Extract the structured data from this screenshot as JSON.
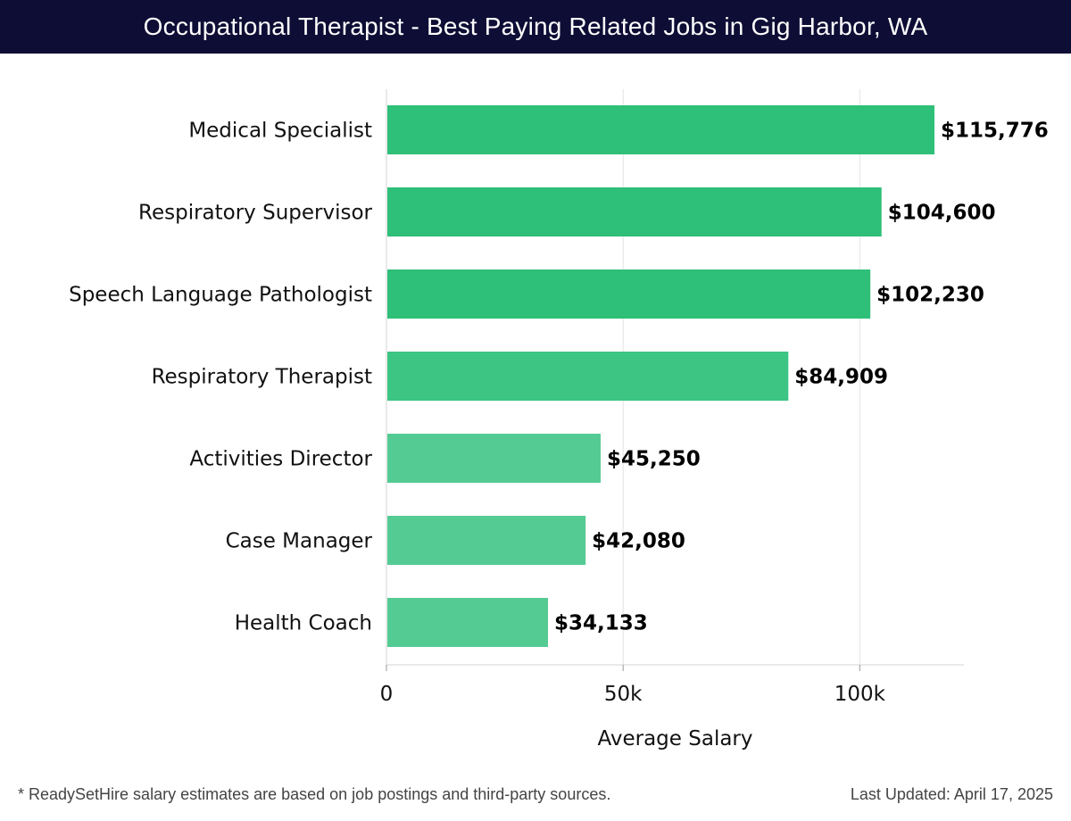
{
  "header": {
    "title": "Occupational Therapist - Best Paying Related Jobs in Gig Harbor, WA"
  },
  "chart_data": {
    "type": "bar",
    "orientation": "horizontal",
    "categories": [
      "Medical Specialist",
      "Respiratory Supervisor",
      "Speech Language Pathologist",
      "Respiratory Therapist",
      "Activities Director",
      "Case Manager",
      "Health Coach"
    ],
    "values": [
      115776,
      104600,
      102230,
      84909,
      45250,
      42080,
      34133
    ],
    "value_labels": [
      "$115,776",
      "$104,600",
      "$102,230",
      "$84,909",
      "$45,250",
      "$42,080",
      "$34,133"
    ],
    "xlabel": "Average Salary",
    "ylabel": "",
    "xlim": [
      0,
      122000
    ],
    "x_ticks": [
      0,
      50000,
      100000
    ],
    "x_tick_labels": [
      "0",
      "50k",
      "100k"
    ],
    "grid": true,
    "colors": {
      "high": "#2ebf78",
      "mid": "#3cc583",
      "low": "#55cb94"
    }
  },
  "footer": {
    "note": "* ReadySetHire salary estimates are based on job postings and third-party sources.",
    "updated": "Last Updated: April 17, 2025"
  }
}
